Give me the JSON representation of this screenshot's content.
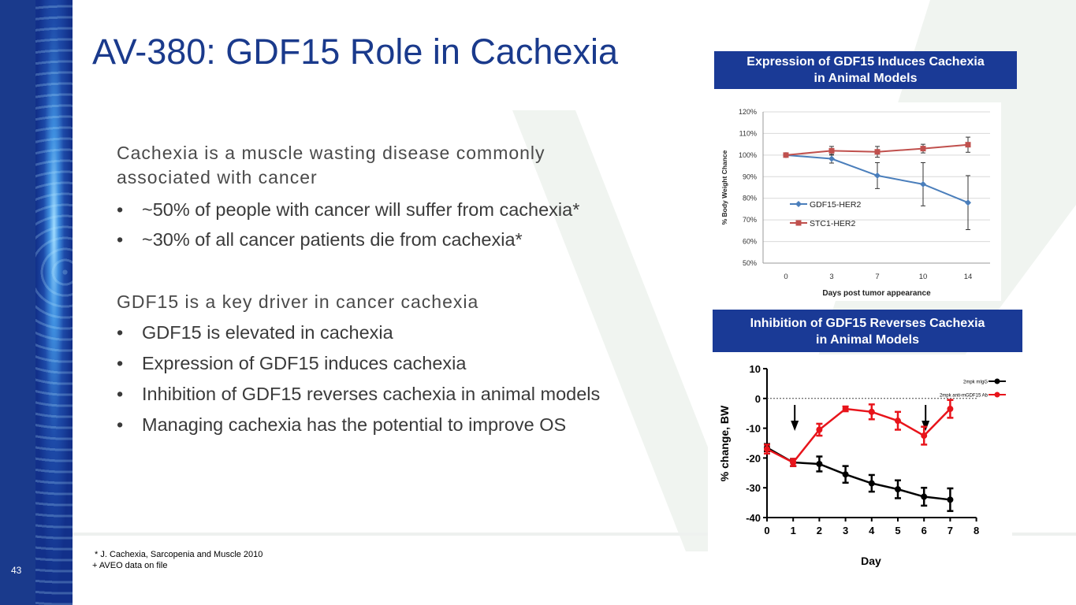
{
  "slide": {
    "title": "AV-380: GDF15 Role in Cachexia",
    "page_number": "43",
    "section1": {
      "heading": "Cachexia is a muscle wasting disease commonly associated with cancer",
      "bullets": [
        "~50% of people with cancer will suffer from cachexia*",
        "~30% of all cancer patients die from cachexia*"
      ]
    },
    "section2": {
      "heading": "GDF15 is a key driver in cancer cachexia",
      "bullets": [
        "GDF15 is elevated in cachexia",
        "Expression of GDF15 induces cachexia",
        "Inhibition of GDF15 reverses cachexia in animal models",
        "Managing cachexia has the potential to improve OS"
      ]
    },
    "bullet_symbol": "•",
    "footnote1": "* J. Cachexia, Sarcopenia and Muscle 2010",
    "footnote2": "+ AVEO data on file",
    "colors": {
      "brand_blue": "#1a3a8c",
      "banner_blue": "#1a3a96"
    }
  },
  "chart_data": [
    {
      "type": "line",
      "title": "Expression of GDF15 Induces Cachexia in Animal Models",
      "title_lines": [
        "Expression of GDF15 Induces Cachexia",
        "in Animal Models"
      ],
      "xlabel": "Days post tumor appearance",
      "ylabel": "% Body Weight Chance",
      "x": [
        0,
        3,
        7,
        10,
        14
      ],
      "ylim": [
        50,
        120
      ],
      "yticks": [
        "50%",
        "60%",
        "70%",
        "80%",
        "90%",
        "100%",
        "110%",
        "120%"
      ],
      "grid": true,
      "legend_position": "left",
      "series": [
        {
          "name": "GDF15-HER2",
          "color": "#4a7ebb",
          "marker": "diamond",
          "values": [
            100,
            98.3,
            90.5,
            86.5,
            78
          ],
          "err": [
            0,
            2,
            6,
            10,
            12.5
          ]
        },
        {
          "name": "STC1-HER2",
          "color": "#c0504d",
          "marker": "square",
          "values": [
            100,
            102,
            101.5,
            103,
            104.8
          ],
          "err": [
            0,
            2,
            2.5,
            2,
            3.5
          ]
        }
      ]
    },
    {
      "type": "line",
      "title": "Inhibition of GDF15 Reverses Cachexia in Animal Models",
      "title_lines": [
        "Inhibition of GDF15 Reverses Cachexia",
        "in Animal Models"
      ],
      "xlabel": "Day",
      "ylabel": "% change, BW",
      "x": [
        0,
        1,
        2,
        3,
        4,
        5,
        6,
        7
      ],
      "ylim": [
        -40,
        10
      ],
      "yticks": [
        "-40",
        "-30",
        "-20",
        "-10",
        "0",
        "10"
      ],
      "xticks": [
        "0",
        "1",
        "2",
        "3",
        "4",
        "5",
        "6",
        "7",
        "8"
      ],
      "reference_line": 0,
      "dosing_days": [
        1,
        6
      ],
      "legend_position": "top-right",
      "series": [
        {
          "name": "2mpk mIgG",
          "color": "#000000",
          "values": [
            -16.5,
            -21.5,
            -22,
            -25.5,
            -28.5,
            -30.5,
            -33,
            -34
          ],
          "err": [
            1.2,
            1.2,
            2.5,
            2.8,
            2.8,
            3,
            3,
            3.8
          ]
        },
        {
          "name": "2mpk anti-mGDF15 Ab",
          "color": "#e8141b",
          "values": [
            -17,
            -21.5,
            -10.5,
            -3.5,
            -4.5,
            -7.5,
            -12.5,
            -3.5
          ],
          "err": [
            1.5,
            1.2,
            2,
            0.8,
            2.5,
            3,
            3,
            3
          ]
        }
      ]
    }
  ]
}
